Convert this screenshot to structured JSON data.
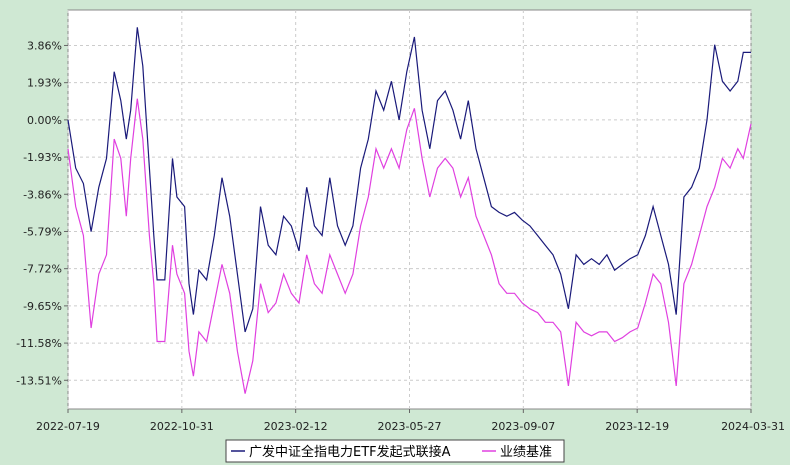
{
  "chart_data": {
    "type": "line",
    "title": "",
    "xlabel": "",
    "ylabel": "",
    "ylim": [
      -15.0,
      5.7
    ],
    "grid": true,
    "legend_position": "bottom-center",
    "y_ticks": [
      3.86,
      1.93,
      0.0,
      -1.93,
      -3.86,
      -5.79,
      -7.72,
      -9.65,
      -11.58,
      -13.51
    ],
    "y_tick_labels": [
      "3.86%",
      "1.93%",
      "0.00%",
      "-1.93%",
      "-3.86%",
      "-5.79%",
      "-7.72%",
      "-9.65%",
      "-11.58%",
      "-13.51%"
    ],
    "x_tick_labels": [
      "2022-07-19",
      "2022-10-31",
      "2023-02-12",
      "2023-05-27",
      "2023-09-07",
      "2023-12-19",
      "2024-03-31"
    ],
    "x_range": [
      "2022-07-19",
      "2024-03-31"
    ],
    "series": [
      {
        "name": "广发中证全指电力ETF发起式联接A",
        "color": "#1a1a7a",
        "points": [
          [
            "2022-07-19",
            0.0
          ],
          [
            "2022-07-26",
            -2.5
          ],
          [
            "2022-08-02",
            -3.3
          ],
          [
            "2022-08-09",
            -5.8
          ],
          [
            "2022-08-16",
            -3.5
          ],
          [
            "2022-08-23",
            -2.0
          ],
          [
            "2022-08-30",
            2.5
          ],
          [
            "2022-09-05",
            1.0
          ],
          [
            "2022-09-10",
            -1.0
          ],
          [
            "2022-09-14",
            0.5
          ],
          [
            "2022-09-20",
            4.8
          ],
          [
            "2022-09-25",
            2.8
          ],
          [
            "2022-10-01",
            -2.5
          ],
          [
            "2022-10-05",
            -6.0
          ],
          [
            "2022-10-08",
            -8.3
          ],
          [
            "2022-10-15",
            -8.3
          ],
          [
            "2022-10-22",
            -2.0
          ],
          [
            "2022-10-26",
            -4.0
          ],
          [
            "2022-11-02",
            -4.5
          ],
          [
            "2022-11-06",
            -8.5
          ],
          [
            "2022-11-10",
            -10.1
          ],
          [
            "2022-11-15",
            -7.8
          ],
          [
            "2022-11-22",
            -8.3
          ],
          [
            "2022-11-29",
            -6.0
          ],
          [
            "2022-12-06",
            -3.0
          ],
          [
            "2022-12-13",
            -5.0
          ],
          [
            "2022-12-20",
            -8.0
          ],
          [
            "2022-12-27",
            -11.0
          ],
          [
            "2023-01-03",
            -9.8
          ],
          [
            "2023-01-10",
            -4.5
          ],
          [
            "2023-01-17",
            -6.5
          ],
          [
            "2023-01-24",
            -7.0
          ],
          [
            "2023-01-31",
            -5.0
          ],
          [
            "2023-02-07",
            -5.5
          ],
          [
            "2023-02-14",
            -6.8
          ],
          [
            "2023-02-21",
            -3.5
          ],
          [
            "2023-02-28",
            -5.5
          ],
          [
            "2023-03-07",
            -6.0
          ],
          [
            "2023-03-14",
            -3.0
          ],
          [
            "2023-03-21",
            -5.5
          ],
          [
            "2023-03-28",
            -6.5
          ],
          [
            "2023-04-04",
            -5.5
          ],
          [
            "2023-04-11",
            -2.5
          ],
          [
            "2023-04-18",
            -1.0
          ],
          [
            "2023-04-25",
            1.5
          ],
          [
            "2023-05-02",
            0.5
          ],
          [
            "2023-05-09",
            2.0
          ],
          [
            "2023-05-16",
            0.0
          ],
          [
            "2023-05-23",
            2.5
          ],
          [
            "2023-05-30",
            4.3
          ],
          [
            "2023-06-06",
            0.5
          ],
          [
            "2023-06-13",
            -1.5
          ],
          [
            "2023-06-20",
            1.0
          ],
          [
            "2023-06-27",
            1.5
          ],
          [
            "2023-07-04",
            0.5
          ],
          [
            "2023-07-11",
            -1.0
          ],
          [
            "2023-07-18",
            1.0
          ],
          [
            "2023-07-25",
            -1.5
          ],
          [
            "2023-08-01",
            -3.0
          ],
          [
            "2023-08-08",
            -4.5
          ],
          [
            "2023-08-15",
            -4.8
          ],
          [
            "2023-08-22",
            -5.0
          ],
          [
            "2023-08-29",
            -4.8
          ],
          [
            "2023-09-05",
            -5.2
          ],
          [
            "2023-09-12",
            -5.5
          ],
          [
            "2023-09-19",
            -6.0
          ],
          [
            "2023-09-26",
            -6.5
          ],
          [
            "2023-10-03",
            -7.0
          ],
          [
            "2023-10-10",
            -8.0
          ],
          [
            "2023-10-17",
            -9.8
          ],
          [
            "2023-10-24",
            -7.0
          ],
          [
            "2023-10-31",
            -7.5
          ],
          [
            "2023-11-07",
            -7.2
          ],
          [
            "2023-11-14",
            -7.5
          ],
          [
            "2023-11-21",
            -7.0
          ],
          [
            "2023-11-28",
            -7.8
          ],
          [
            "2023-12-05",
            -7.5
          ],
          [
            "2023-12-12",
            -7.2
          ],
          [
            "2023-12-19",
            -7.0
          ],
          [
            "2023-12-26",
            -6.0
          ],
          [
            "2024-01-02",
            -4.5
          ],
          [
            "2024-01-09",
            -6.0
          ],
          [
            "2024-01-16",
            -7.5
          ],
          [
            "2024-01-23",
            -10.1
          ],
          [
            "2024-01-30",
            -4.0
          ],
          [
            "2024-02-06",
            -3.5
          ],
          [
            "2024-02-13",
            -2.5
          ],
          [
            "2024-02-20",
            0.0
          ],
          [
            "2024-02-27",
            3.9
          ],
          [
            "2024-03-05",
            2.0
          ],
          [
            "2024-03-12",
            1.5
          ],
          [
            "2024-03-19",
            2.0
          ],
          [
            "2024-03-24",
            3.5
          ],
          [
            "2024-03-31",
            3.5
          ]
        ]
      },
      {
        "name": "业绩基准",
        "color": "#e040e0",
        "points": [
          [
            "2022-07-19",
            -1.5
          ],
          [
            "2022-07-26",
            -4.5
          ],
          [
            "2022-08-02",
            -6.0
          ],
          [
            "2022-08-09",
            -10.8
          ],
          [
            "2022-08-16",
            -8.0
          ],
          [
            "2022-08-23",
            -7.0
          ],
          [
            "2022-08-30",
            -1.0
          ],
          [
            "2022-09-05",
            -2.0
          ],
          [
            "2022-09-10",
            -5.0
          ],
          [
            "2022-09-14",
            -2.0
          ],
          [
            "2022-09-20",
            1.1
          ],
          [
            "2022-09-25",
            -1.0
          ],
          [
            "2022-10-01",
            -6.0
          ],
          [
            "2022-10-05",
            -8.5
          ],
          [
            "2022-10-08",
            -11.5
          ],
          [
            "2022-10-15",
            -11.5
          ],
          [
            "2022-10-22",
            -6.5
          ],
          [
            "2022-10-26",
            -8.0
          ],
          [
            "2022-11-02",
            -9.0
          ],
          [
            "2022-11-06",
            -12.0
          ],
          [
            "2022-11-10",
            -13.3
          ],
          [
            "2022-11-15",
            -11.0
          ],
          [
            "2022-11-22",
            -11.5
          ],
          [
            "2022-11-29",
            -9.5
          ],
          [
            "2022-12-06",
            -7.5
          ],
          [
            "2022-12-13",
            -9.0
          ],
          [
            "2022-12-20",
            -12.0
          ],
          [
            "2022-12-27",
            -14.2
          ],
          [
            "2023-01-03",
            -12.5
          ],
          [
            "2023-01-10",
            -8.5
          ],
          [
            "2023-01-17",
            -10.0
          ],
          [
            "2023-01-24",
            -9.5
          ],
          [
            "2023-01-31",
            -8.0
          ],
          [
            "2023-02-07",
            -9.0
          ],
          [
            "2023-02-14",
            -9.5
          ],
          [
            "2023-02-21",
            -7.0
          ],
          [
            "2023-02-28",
            -8.5
          ],
          [
            "2023-03-07",
            -9.0
          ],
          [
            "2023-03-14",
            -7.0
          ],
          [
            "2023-03-21",
            -8.0
          ],
          [
            "2023-03-28",
            -9.0
          ],
          [
            "2023-04-04",
            -8.0
          ],
          [
            "2023-04-11",
            -5.5
          ],
          [
            "2023-04-18",
            -4.0
          ],
          [
            "2023-04-25",
            -1.5
          ],
          [
            "2023-05-02",
            -2.5
          ],
          [
            "2023-05-09",
            -1.5
          ],
          [
            "2023-05-16",
            -2.5
          ],
          [
            "2023-05-23",
            -0.5
          ],
          [
            "2023-05-30",
            0.6
          ],
          [
            "2023-06-06",
            -2.0
          ],
          [
            "2023-06-13",
            -4.0
          ],
          [
            "2023-06-20",
            -2.5
          ],
          [
            "2023-06-27",
            -2.0
          ],
          [
            "2023-07-04",
            -2.5
          ],
          [
            "2023-07-11",
            -4.0
          ],
          [
            "2023-07-18",
            -3.0
          ],
          [
            "2023-07-25",
            -5.0
          ],
          [
            "2023-08-01",
            -6.0
          ],
          [
            "2023-08-08",
            -7.0
          ],
          [
            "2023-08-15",
            -8.5
          ],
          [
            "2023-08-22",
            -9.0
          ],
          [
            "2023-08-29",
            -9.0
          ],
          [
            "2023-09-05",
            -9.5
          ],
          [
            "2023-09-12",
            -9.8
          ],
          [
            "2023-09-19",
            -10.0
          ],
          [
            "2023-09-26",
            -10.5
          ],
          [
            "2023-10-03",
            -10.5
          ],
          [
            "2023-10-10",
            -11.0
          ],
          [
            "2023-10-17",
            -13.8
          ],
          [
            "2023-10-24",
            -10.5
          ],
          [
            "2023-10-31",
            -11.0
          ],
          [
            "2023-11-07",
            -11.2
          ],
          [
            "2023-11-14",
            -11.0
          ],
          [
            "2023-11-21",
            -11.0
          ],
          [
            "2023-11-28",
            -11.5
          ],
          [
            "2023-12-05",
            -11.3
          ],
          [
            "2023-12-12",
            -11.0
          ],
          [
            "2023-12-19",
            -10.8
          ],
          [
            "2023-12-26",
            -9.5
          ],
          [
            "2024-01-02",
            -8.0
          ],
          [
            "2024-01-09",
            -8.5
          ],
          [
            "2024-01-16",
            -10.5
          ],
          [
            "2024-01-23",
            -13.8
          ],
          [
            "2024-01-30",
            -8.5
          ],
          [
            "2024-02-06",
            -7.5
          ],
          [
            "2024-02-13",
            -6.0
          ],
          [
            "2024-02-20",
            -4.5
          ],
          [
            "2024-02-27",
            -3.5
          ],
          [
            "2024-03-05",
            -2.0
          ],
          [
            "2024-03-12",
            -2.5
          ],
          [
            "2024-03-19",
            -1.5
          ],
          [
            "2024-03-24",
            -2.0
          ],
          [
            "2024-03-31",
            -0.2
          ]
        ]
      }
    ]
  }
}
